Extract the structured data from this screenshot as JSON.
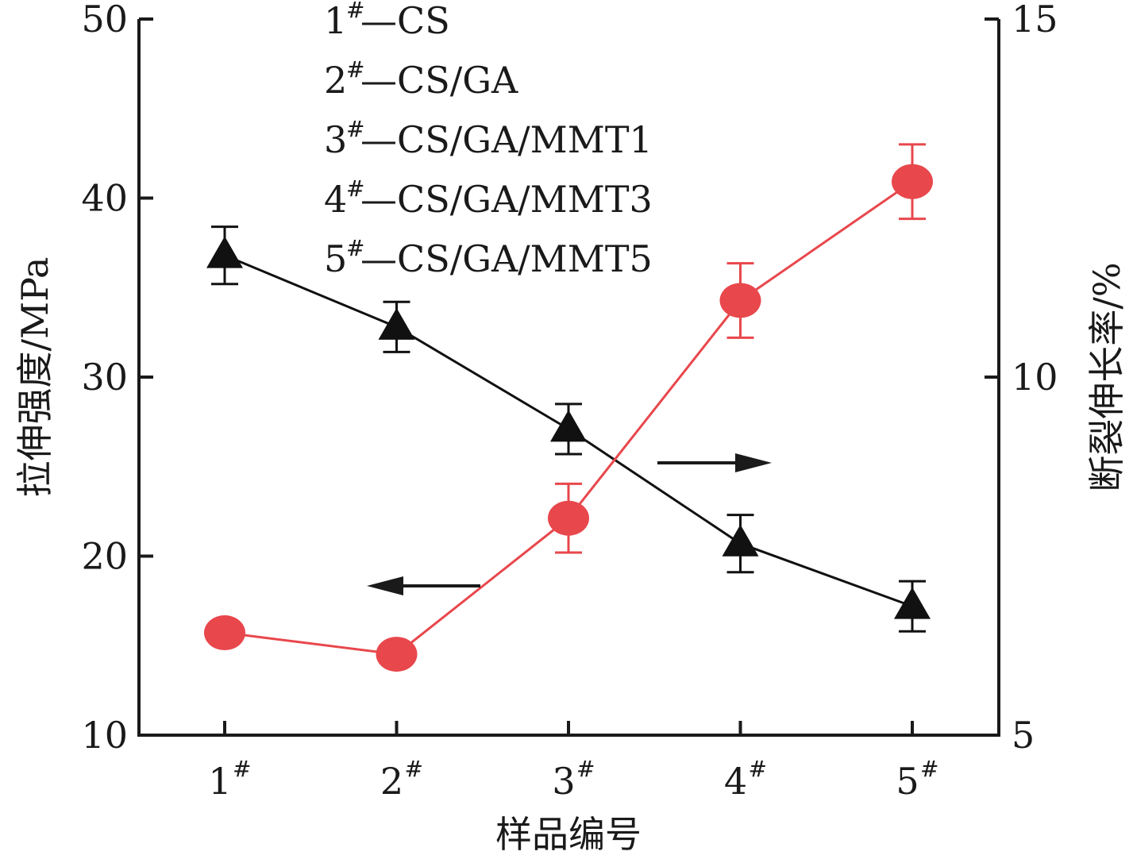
{
  "chart_data": {
    "type": "line",
    "categories": [
      "1#",
      "2#",
      "3#",
      "4#",
      "5#"
    ],
    "category_labels": [
      {
        "base": "1",
        "sup": "#"
      },
      {
        "base": "2",
        "sup": "#"
      },
      {
        "base": "3",
        "sup": "#"
      },
      {
        "base": "4",
        "sup": "#"
      },
      {
        "base": "5",
        "sup": "#"
      }
    ],
    "xlabel": "样品编号",
    "ylabel_left": "拉伸强度/MPa",
    "ylabel_right": "断裂伸长率/%",
    "ylim_left": [
      10,
      50
    ],
    "ylim_right": [
      5,
      15
    ],
    "yticks_left": [
      "10",
      "20",
      "30",
      "40",
      "50"
    ],
    "yticks_right": [
      "5",
      "10",
      "15"
    ],
    "grid": false,
    "series": [
      {
        "axis": "left",
        "marker": "triangle",
        "color": "#111111",
        "values": [
          36.8,
          32.8,
          27.1,
          20.7,
          17.2
        ],
        "errors": [
          1.6,
          1.4,
          1.4,
          1.6,
          1.4
        ]
      },
      {
        "axis": "right",
        "marker": "circle",
        "color": "#e8474c",
        "values": [
          6.43,
          6.13,
          8.03,
          11.07,
          12.73
        ],
        "errors": [
          0,
          0,
          0.48,
          0.52,
          0.52
        ]
      }
    ],
    "legend": {
      "placement": "top-left",
      "items": [
        {
          "num": "1",
          "sup": "#",
          "text": "—CS"
        },
        {
          "num": "2",
          "sup": "#",
          "text": "—CS/GA"
        },
        {
          "num": "3",
          "sup": "#",
          "text": "—CS/GA/MMT1"
        },
        {
          "num": "4",
          "sup": "#",
          "text": "—CS/GA/MMT3"
        },
        {
          "num": "5",
          "sup": "#",
          "text": "—CS/GA/MMT5"
        }
      ]
    },
    "annotations": [
      {
        "type": "arrow",
        "direction": "left",
        "points_to": "left axis"
      },
      {
        "type": "arrow",
        "direction": "right",
        "points_to": "right axis"
      }
    ]
  }
}
